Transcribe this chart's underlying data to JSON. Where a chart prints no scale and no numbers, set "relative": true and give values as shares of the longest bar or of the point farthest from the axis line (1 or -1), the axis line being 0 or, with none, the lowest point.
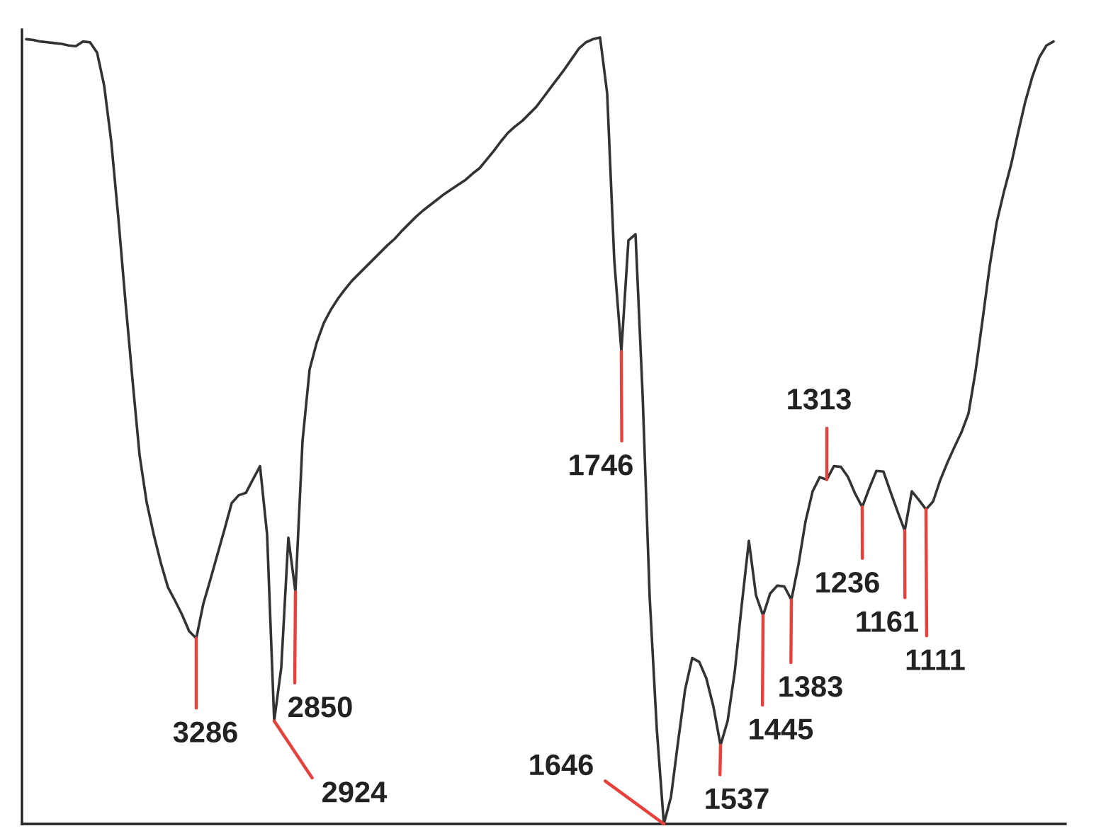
{
  "chart_data": {
    "type": "line",
    "relative": true,
    "line_style": "solid",
    "categories": [
      null,
      null,
      null,
      null,
      null,
      null,
      null,
      null,
      null,
      null,
      null,
      null,
      null,
      null,
      null,
      null,
      null,
      null,
      null,
      null,
      null,
      null,
      null,
      null,
      null,
      null,
      null,
      null,
      null,
      null,
      null,
      null,
      null,
      null,
      null,
      null,
      null,
      null,
      null,
      null,
      null,
      null,
      null,
      null,
      null,
      null,
      null,
      null,
      null,
      null,
      null,
      null,
      null,
      null,
      null,
      null,
      null,
      null,
      null,
      null,
      null,
      null,
      null,
      null,
      null,
      null,
      null,
      null,
      null,
      null,
      null,
      null,
      null,
      null,
      null,
      null,
      null,
      null,
      null,
      null,
      null,
      null,
      null,
      null,
      null,
      null,
      null,
      null,
      null,
      null,
      null,
      null,
      null,
      null,
      null,
      null,
      null,
      null,
      null,
      null,
      null,
      null,
      null,
      null,
      null,
      null,
      null,
      null,
      null,
      null,
      null,
      null,
      null,
      null,
      null,
      null,
      null,
      null,
      null,
      null,
      null,
      null,
      null,
      null,
      null,
      null,
      null,
      null,
      null,
      null,
      null,
      null,
      null,
      null,
      null,
      null,
      null,
      null,
      null,
      null,
      null,
      null,
      null,
      null,
      null,
      null
    ],
    "series": [
      {
        "color": "#333333",
        "values": [
          0.998,
          0.997,
          0.995,
          0.994,
          0.993,
          0.992,
          0.99,
          0.989,
          0.995,
          0.994,
          0.981,
          0.939,
          0.868,
          0.771,
          0.665,
          0.565,
          0.469,
          0.409,
          0.368,
          0.332,
          0.301,
          0.284,
          0.266,
          0.245,
          0.236,
          0.28,
          0.311,
          0.343,
          0.375,
          0.408,
          0.418,
          0.421,
          0.438,
          0.455,
          0.368,
          0.131,
          0.199,
          0.364,
          0.295,
          0.487,
          0.578,
          0.612,
          0.637,
          0.654,
          0.668,
          0.68,
          0.691,
          0.7,
          0.709,
          0.718,
          0.727,
          0.736,
          0.744,
          0.754,
          0.763,
          0.772,
          0.78,
          0.787,
          0.794,
          0.801,
          0.807,
          0.813,
          0.819,
          0.827,
          0.834,
          0.845,
          0.856,
          0.868,
          0.879,
          0.887,
          0.894,
          0.903,
          0.912,
          0.924,
          0.936,
          0.948,
          0.96,
          0.973,
          0.986,
          0.994,
          0.998,
          1,
          0.929,
          0.717,
          0.601,
          0.742,
          0.75,
          0.546,
          0.288,
          0.121,
          0,
          0.034,
          0.104,
          0.171,
          0.211,
          0.206,
          0.185,
          0.149,
          0.1,
          0.131,
          0.193,
          0.279,
          0.36,
          0.291,
          0.265,
          0.293,
          0.303,
          0.302,
          0.285,
          0.33,
          0.385,
          0.423,
          0.441,
          0.438,
          0.455,
          0.454,
          0.441,
          0.42,
          0.403,
          0.427,
          0.449,
          0.448,
          0.422,
          0.397,
          0.373,
          0.423,
          0.412,
          0.4,
          0.41,
          0.437,
          0.459,
          0.479,
          0.498,
          0.522,
          0.576,
          0.642,
          0.71,
          0.766,
          0.804,
          0.838,
          0.879,
          0.918,
          0.95,
          0.975,
          0.99,
          0.995
        ]
      }
    ],
    "annotations": [
      "3286",
      "2924",
      "2850",
      "1746",
      "1646",
      "1537",
      "1445",
      "1383",
      "1313",
      "1236",
      "1161",
      "1111"
    ]
  }
}
